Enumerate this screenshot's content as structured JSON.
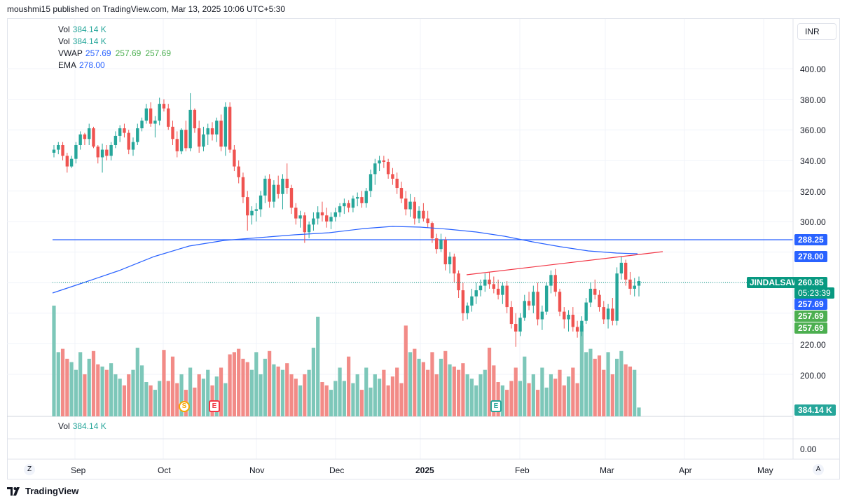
{
  "header": {
    "published": "moushmi15 published on TradingView.com, Mar 13, 2025 10:06 UTC+5:30"
  },
  "currency": "INR",
  "legend": {
    "vol1": {
      "name": "Vol",
      "value": "384.14 K"
    },
    "vol2": {
      "name": "Vol",
      "value": "384.14 K"
    },
    "vwap": {
      "name": "VWAP",
      "v1": "257.69",
      "v2": "257.69",
      "v3": "257.69"
    },
    "ema": {
      "name": "EMA",
      "value": "278.00"
    },
    "vol_pane": {
      "name": "Vol",
      "value": "384.14 K"
    }
  },
  "price_axis": [
    "400.00",
    "380.00",
    "360.00",
    "340.00",
    "320.00",
    "300.00",
    "220.00",
    "200.00"
  ],
  "price_axis_lower": "0.00",
  "price_tags": {
    "level": "288.25",
    "ema": "278.00",
    "last": "260.85",
    "countdown": "05:23:39",
    "vwap1": "257.69",
    "vwap2": "257.69",
    "vwap3": "257.69",
    "volume": "384.14 K"
  },
  "symbol": "JINDALSAW",
  "time_axis": [
    {
      "label": "Sep",
      "bold": false
    },
    {
      "label": "Oct",
      "bold": false
    },
    {
      "label": "Nov",
      "bold": false
    },
    {
      "label": "Dec",
      "bold": false
    },
    {
      "label": "2025",
      "bold": true
    },
    {
      "label": "Feb",
      "bold": false
    },
    {
      "label": "Mar",
      "bold": false
    },
    {
      "label": "Apr",
      "bold": false
    },
    {
      "label": "May",
      "bold": false
    }
  ],
  "markers": {
    "split": "S",
    "earnings1": "E",
    "earnings2": "E"
  },
  "buttons": {
    "zoom_left": "Z",
    "auto_scale": "A"
  },
  "footer": {
    "brand": "TradingView"
  },
  "colors": {
    "up": "#26a69a",
    "down": "#ef5350",
    "ema": "#2962ff",
    "level": "#2962ff",
    "trendline": "#f23645",
    "vwap_tag": "#4caf50"
  },
  "chart_data": {
    "type": "candlestick",
    "symbol": "JINDALSAW",
    "horizontal_level": 288.25,
    "last_price": 260.85,
    "ema": 278.0,
    "vwap": 257.69,
    "ohlc": [
      [
        345,
        350,
        342,
        347
      ],
      [
        347,
        352,
        344,
        350
      ],
      [
        350,
        352,
        340,
        343
      ],
      [
        343,
        345,
        332,
        336
      ],
      [
        336,
        343,
        335,
        341
      ],
      [
        341,
        352,
        338,
        350
      ],
      [
        350,
        359,
        347,
        357
      ],
      [
        357,
        358,
        350,
        354
      ],
      [
        354,
        364,
        350,
        361
      ],
      [
        361,
        362,
        348,
        349
      ],
      [
        349,
        350,
        338,
        342
      ],
      [
        342,
        351,
        332,
        347
      ],
      [
        347,
        350,
        340,
        343
      ],
      [
        343,
        352,
        340,
        350
      ],
      [
        350,
        359,
        348,
        356
      ],
      [
        356,
        363,
        352,
        361
      ],
      [
        361,
        364,
        355,
        358
      ],
      [
        358,
        360,
        344,
        347
      ],
      [
        347,
        355,
        343,
        352
      ],
      [
        352,
        364,
        350,
        361
      ],
      [
        361,
        368,
        359,
        366
      ],
      [
        366,
        377,
        364,
        374
      ],
      [
        374,
        378,
        362,
        364
      ],
      [
        364,
        369,
        355,
        366
      ],
      [
        366,
        381,
        363,
        377
      ],
      [
        377,
        380,
        372,
        374
      ],
      [
        374,
        377,
        360,
        362
      ],
      [
        362,
        366,
        350,
        354
      ],
      [
        354,
        359,
        342,
        346
      ],
      [
        346,
        361,
        344,
        360
      ],
      [
        360,
        366,
        346,
        348
      ],
      [
        348,
        384,
        346,
        373
      ],
      [
        373,
        374,
        358,
        361
      ],
      [
        361,
        366,
        345,
        349
      ],
      [
        349,
        362,
        346,
        357
      ],
      [
        357,
        364,
        350,
        361
      ],
      [
        361,
        365,
        353,
        357
      ],
      [
        357,
        368,
        352,
        366
      ],
      [
        366,
        370,
        346,
        349
      ],
      [
        349,
        378,
        343,
        375
      ],
      [
        375,
        378,
        345,
        347
      ],
      [
        347,
        350,
        333,
        336
      ],
      [
        336,
        340,
        325,
        329
      ],
      [
        329,
        332,
        312,
        316
      ],
      [
        316,
        320,
        294,
        304
      ],
      [
        304,
        310,
        298,
        307
      ],
      [
        307,
        312,
        300,
        308
      ],
      [
        308,
        320,
        303,
        317
      ],
      [
        317,
        330,
        312,
        328
      ],
      [
        328,
        331,
        309,
        313
      ],
      [
        313,
        327,
        309,
        324
      ],
      [
        324,
        330,
        315,
        318
      ],
      [
        318,
        331,
        308,
        328
      ],
      [
        328,
        338,
        318,
        322
      ],
      [
        322,
        324,
        305,
        309
      ],
      [
        309,
        312,
        298,
        302
      ],
      [
        302,
        307,
        296,
        304
      ],
      [
        304,
        306,
        286,
        293
      ],
      [
        293,
        300,
        289,
        298
      ],
      [
        298,
        306,
        294,
        302
      ],
      [
        302,
        310,
        298,
        306
      ],
      [
        306,
        313,
        300,
        304
      ],
      [
        304,
        309,
        296,
        300
      ],
      [
        300,
        306,
        295,
        303
      ],
      [
        303,
        309,
        300,
        306
      ],
      [
        306,
        312,
        303,
        310
      ],
      [
        310,
        315,
        305,
        312
      ],
      [
        312,
        314,
        306,
        309
      ],
      [
        309,
        317,
        306,
        315
      ],
      [
        315,
        319,
        310,
        316
      ],
      [
        316,
        320,
        309,
        312
      ],
      [
        312,
        322,
        309,
        320
      ],
      [
        320,
        334,
        316,
        331
      ],
      [
        331,
        341,
        324,
        338
      ],
      [
        338,
        343,
        333,
        340
      ],
      [
        340,
        343,
        335,
        339
      ],
      [
        339,
        341,
        328,
        331
      ],
      [
        331,
        335,
        324,
        328
      ],
      [
        328,
        332,
        318,
        322
      ],
      [
        322,
        326,
        312,
        315
      ],
      [
        315,
        320,
        304,
        308
      ],
      [
        308,
        318,
        303,
        313
      ],
      [
        313,
        316,
        298,
        302
      ],
      [
        302,
        310,
        299,
        307
      ],
      [
        307,
        312,
        300,
        302
      ],
      [
        302,
        307,
        296,
        299
      ],
      [
        299,
        300,
        286,
        289
      ],
      [
        289,
        292,
        279,
        282
      ],
      [
        282,
        292,
        280,
        288
      ],
      [
        288,
        290,
        268,
        272
      ],
      [
        272,
        280,
        266,
        277
      ],
      [
        277,
        279,
        260,
        266
      ],
      [
        266,
        268,
        250,
        255
      ],
      [
        255,
        260,
        235,
        240
      ],
      [
        240,
        247,
        236,
        245
      ],
      [
        245,
        256,
        241,
        251
      ],
      [
        251,
        260,
        246,
        255
      ],
      [
        255,
        262,
        251,
        258
      ],
      [
        258,
        266,
        254,
        262
      ],
      [
        262,
        267,
        256,
        259
      ],
      [
        259,
        264,
        253,
        256
      ],
      [
        256,
        262,
        249,
        252
      ],
      [
        252,
        260,
        246,
        258
      ],
      [
        258,
        261,
        240,
        244
      ],
      [
        244,
        248,
        230,
        233
      ],
      [
        233,
        240,
        218,
        228
      ],
      [
        228,
        240,
        225,
        237
      ],
      [
        237,
        252,
        235,
        248
      ],
      [
        248,
        254,
        242,
        245
      ],
      [
        245,
        258,
        240,
        254
      ],
      [
        254,
        260,
        232,
        236
      ],
      [
        236,
        245,
        229,
        241
      ],
      [
        241,
        260,
        239,
        258
      ],
      [
        258,
        268,
        253,
        265
      ],
      [
        265,
        269,
        251,
        254
      ],
      [
        254,
        256,
        238,
        241
      ],
      [
        241,
        244,
        230,
        236
      ],
      [
        236,
        242,
        228,
        239
      ],
      [
        239,
        244,
        228,
        231
      ],
      [
        231,
        235,
        224,
        228
      ],
      [
        228,
        238,
        225,
        235
      ],
      [
        235,
        250,
        233,
        247
      ],
      [
        247,
        260,
        244,
        256
      ],
      [
        256,
        262,
        249,
        252
      ],
      [
        252,
        255,
        241,
        244
      ],
      [
        244,
        248,
        233,
        236
      ],
      [
        236,
        246,
        230,
        243
      ],
      [
        243,
        250,
        232,
        235
      ],
      [
        235,
        270,
        232,
        266
      ],
      [
        266,
        277,
        262,
        273
      ],
      [
        273,
        275,
        258,
        262
      ],
      [
        262,
        267,
        252,
        256
      ],
      [
        256,
        263,
        251,
        258
      ],
      [
        258,
        264,
        251,
        261
      ]
    ],
    "volume_levels": [
      0.82,
      0.58,
      0.61,
      0.52,
      0.49,
      0.42,
      0.58,
      0.38,
      0.52,
      0.59,
      0.47,
      0.45,
      0.42,
      0.48,
      0.38,
      0.34,
      0.28,
      0.38,
      0.42,
      0.62,
      0.46,
      0.31,
      0.28,
      0.24,
      0.32,
      0.44,
      0.32,
      0.54,
      0.3,
      0.38,
      0.24,
      0.44,
      0.26,
      0.38,
      0.34,
      0.42,
      0.28,
      0.36,
      0.44,
      0.3
    ]
  }
}
